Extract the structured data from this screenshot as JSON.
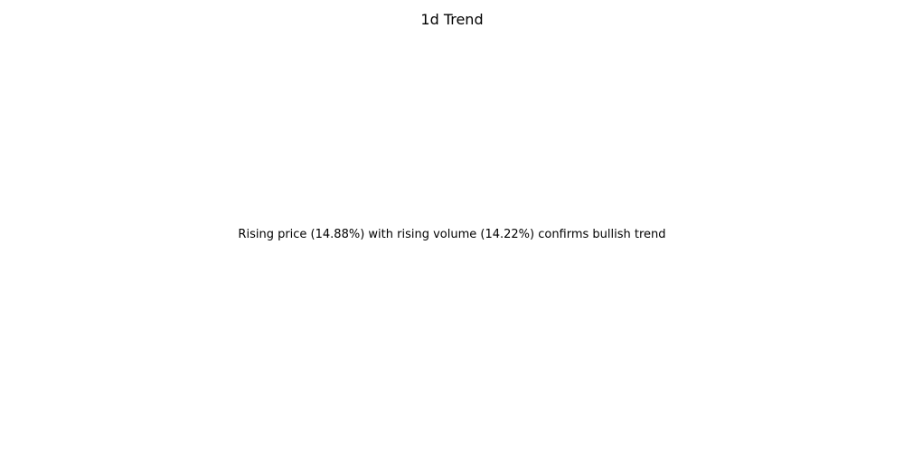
{
  "chart_data": {
    "type": "text",
    "title": "1d Trend",
    "annotation": "Rising price (14.88%) with rising volume (14.22%) confirms bullish trend",
    "axes_visible": false,
    "grid": false
  }
}
